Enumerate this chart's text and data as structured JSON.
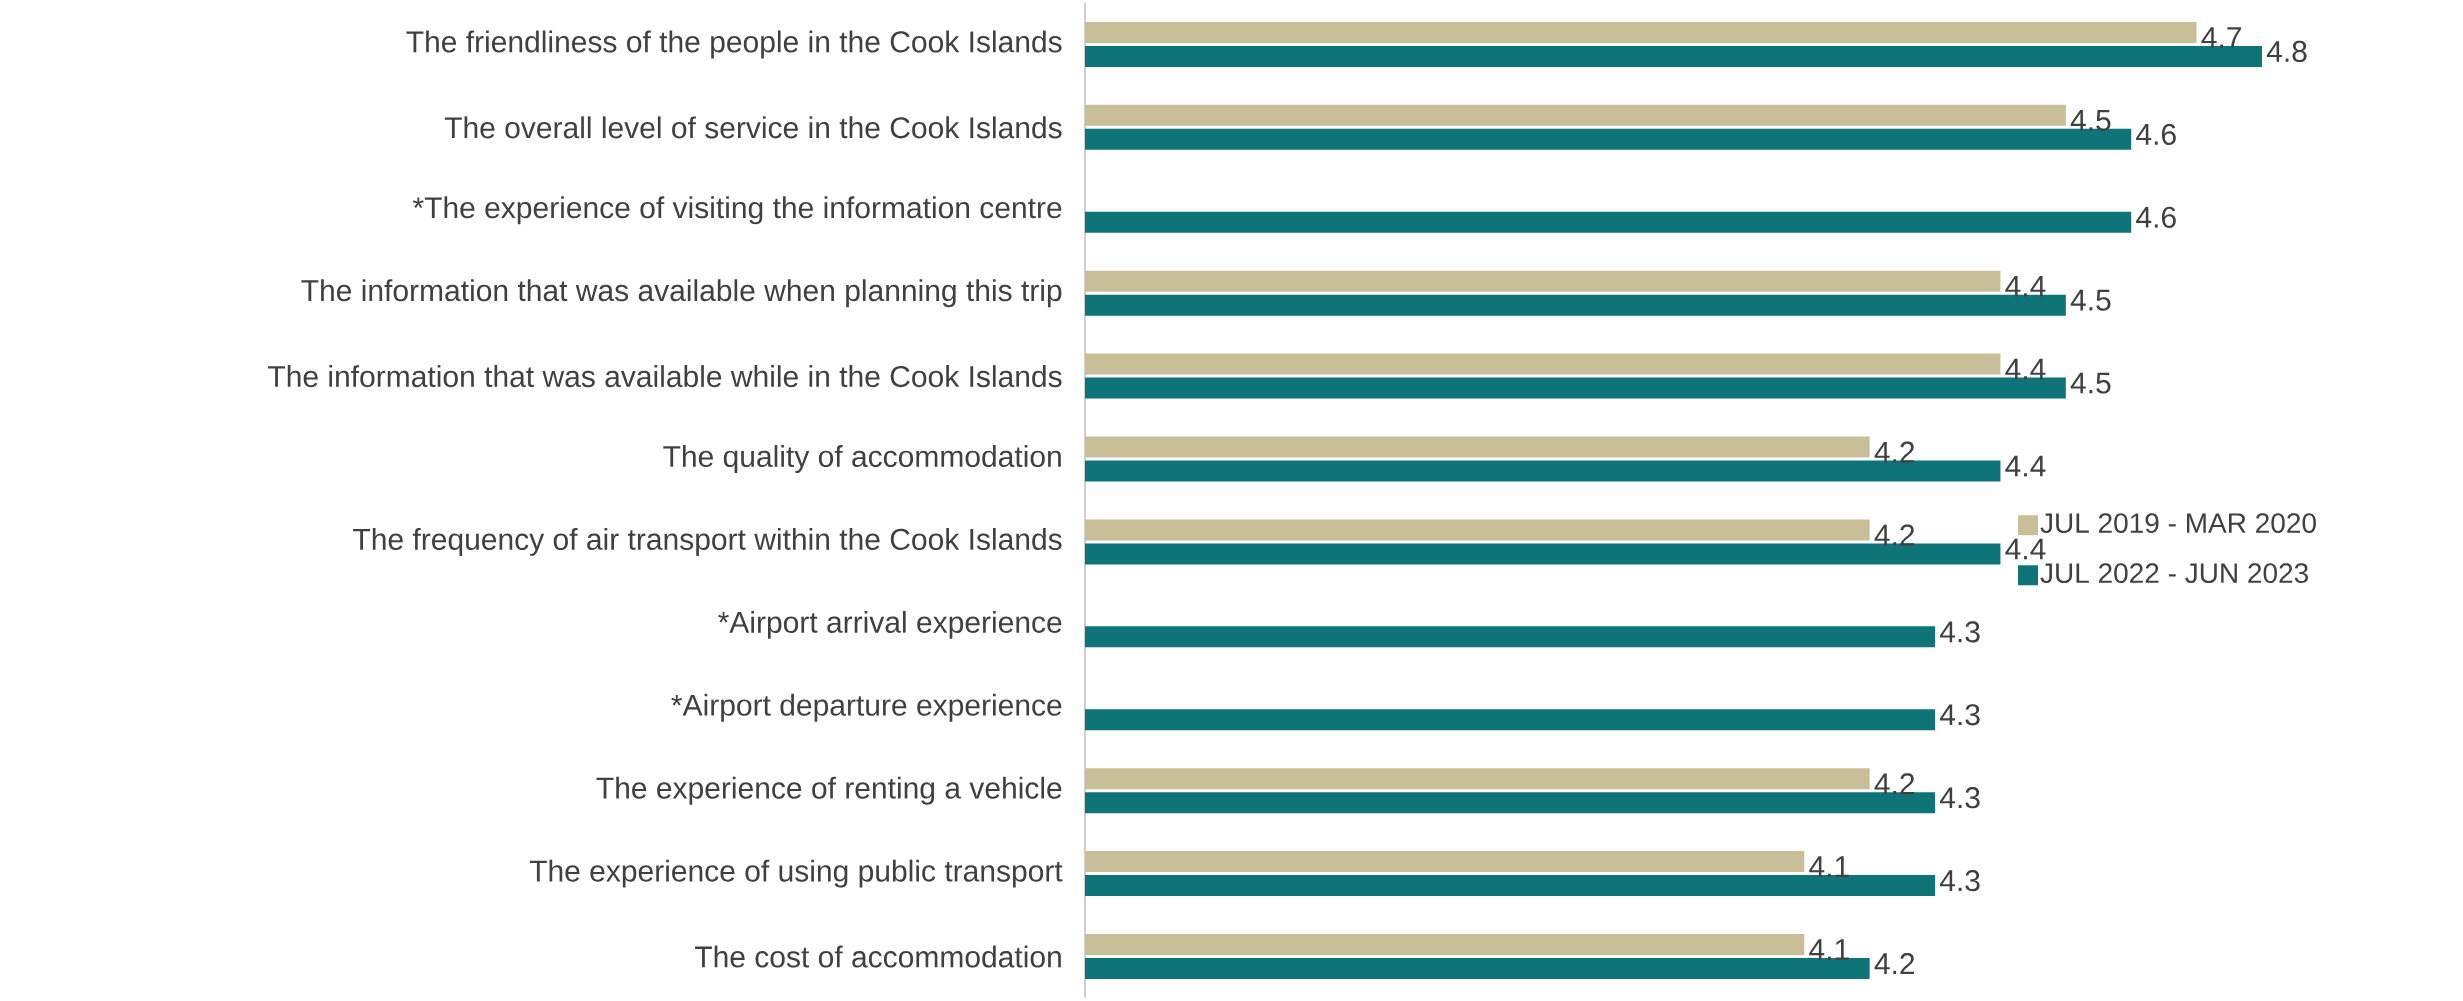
{
  "chart_data": {
    "type": "bar",
    "orientation": "horizontal",
    "categories": [
      "The friendliness of the people in the Cook Islands",
      "The overall level of service in the Cook Islands",
      "*The experience of visiting the information centre",
      "The information that was available when planning this trip",
      "The information that was available while in the Cook Islands",
      "The quality of accommodation",
      "The frequency of air transport within the Cook Islands",
      "*Airport arrival experience",
      "*Airport departure experience",
      "The experience of renting a vehicle",
      "The experience of using public transport",
      "The cost of accommodation"
    ],
    "series": [
      {
        "name": "JUL 2019 - MAR 2020",
        "color": "#c8bf98",
        "values": [
          4.7,
          4.5,
          null,
          4.4,
          4.4,
          4.2,
          4.2,
          null,
          null,
          4.2,
          4.1,
          4.1
        ]
      },
      {
        "name": "JUL 2022 - JUN 2023",
        "color": "#0e7478",
        "values": [
          4.8,
          4.6,
          4.6,
          4.5,
          4.5,
          4.4,
          4.4,
          4.3,
          4.3,
          4.3,
          4.3,
          4.2
        ]
      }
    ],
    "xlim": [
      3,
      4.8
    ],
    "data_labels": true,
    "legend": "right"
  }
}
